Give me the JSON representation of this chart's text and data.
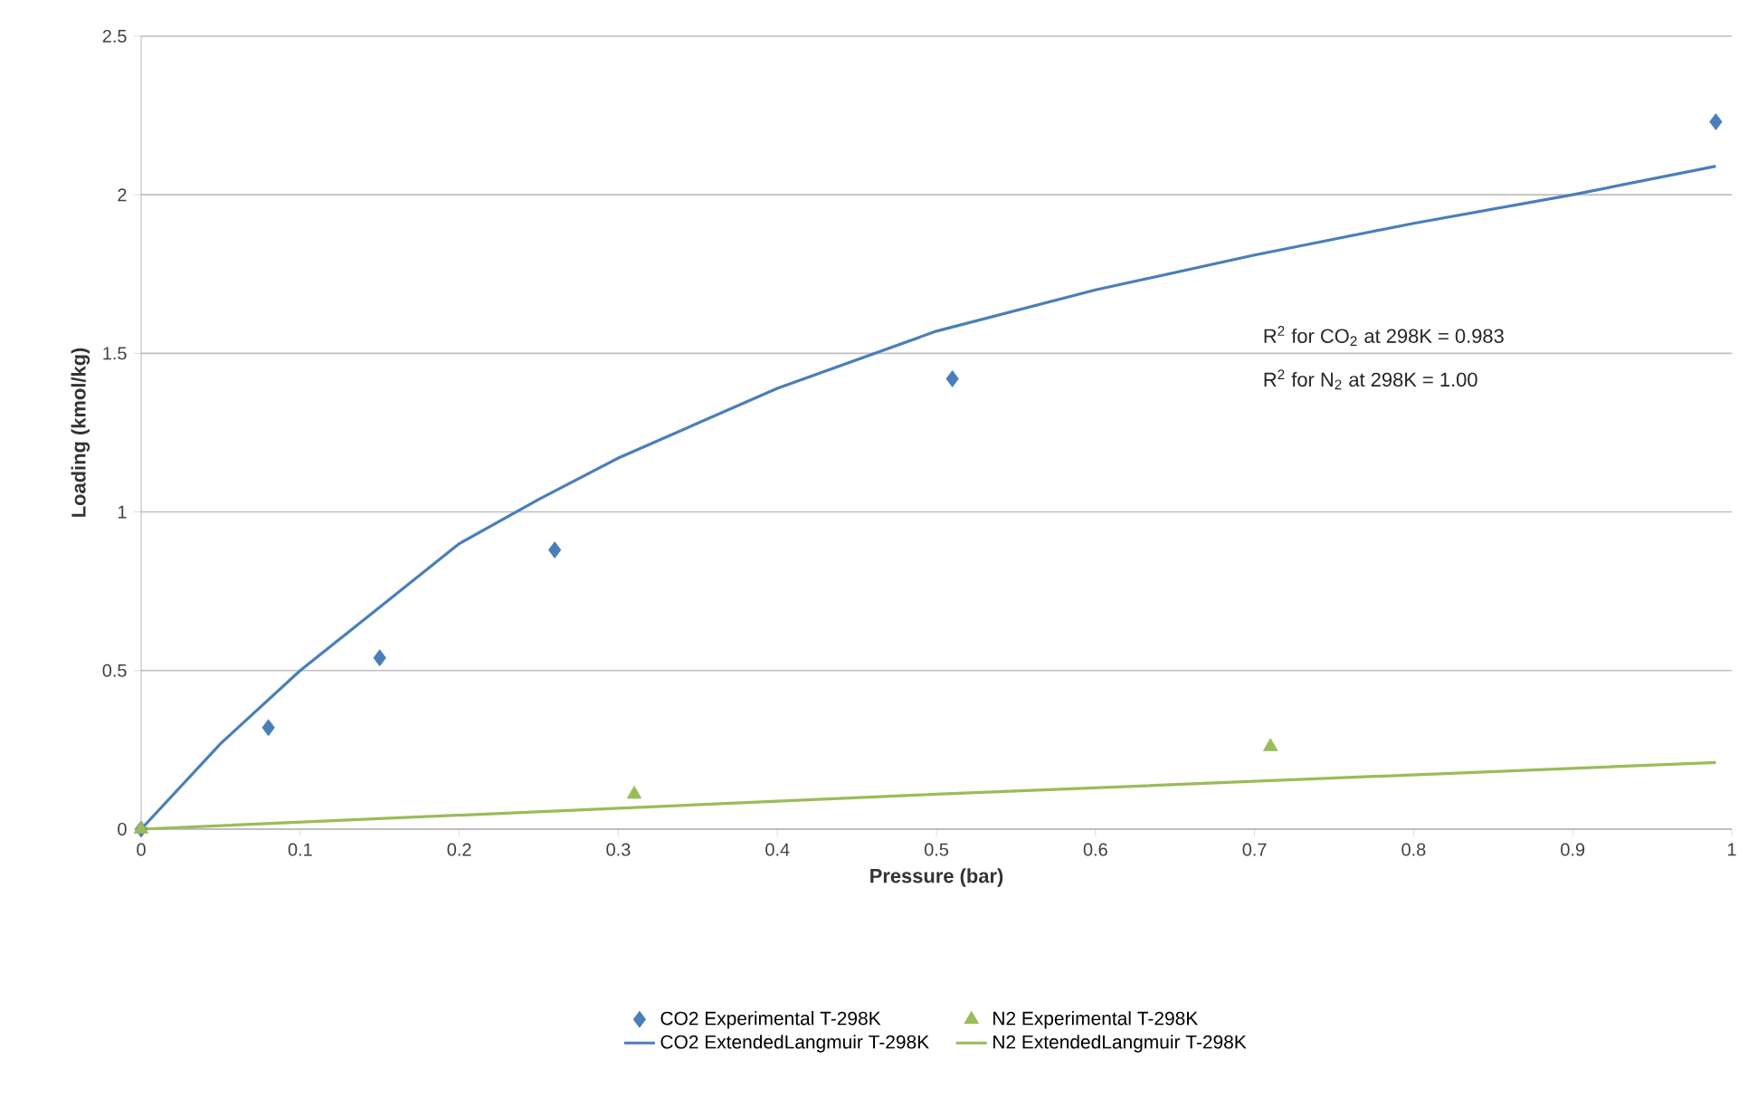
{
  "chart_data": {
    "type": "scatter",
    "xlabel": "Pressure (bar)",
    "ylabel": "Loading (kmol/kg)",
    "xlim": [
      0,
      1
    ],
    "ylim": [
      0,
      2.5
    ],
    "xticks": [
      0,
      0.1,
      0.2,
      0.3,
      0.4,
      0.5,
      0.6,
      0.7,
      0.8,
      0.9,
      1
    ],
    "yticks": [
      0,
      0.5,
      1,
      1.5,
      2,
      2.5
    ],
    "grid": "y",
    "legend": "bottom",
    "annotations": [
      "R$^{2}$ for CO$_{2}$ at 298K = 0.983",
      "R$^{2}$ for N$_{2}$ at 298K = 1.00"
    ],
    "series": [
      {
        "name": "CO2 Experimental T-298K",
        "marker": "diamond",
        "color": "#4a7ebb",
        "x": [
          0,
          0.08,
          0.15,
          0.26,
          0.51,
          0.99
        ],
        "values": [
          0,
          0.32,
          0.54,
          0.88,
          1.42,
          2.23
        ]
      },
      {
        "name": "N2 Experimental T-298K",
        "marker": "triangle",
        "color": "#9bbb59",
        "x": [
          0,
          0.31,
          0.71
        ],
        "values": [
          0,
          0.11,
          0.26
        ]
      },
      {
        "name": "CO2 ExtendedLangmuir T-298K",
        "type": "line",
        "marker": "none",
        "line_style": "solid",
        "color": "#4a7ebb",
        "x": [
          0,
          0.05,
          0.1,
          0.15,
          0.2,
          0.25,
          0.3,
          0.4,
          0.5,
          0.6,
          0.7,
          0.8,
          0.9,
          0.99
        ],
        "values": [
          0,
          0.27,
          0.5,
          0.7,
          0.9,
          1.04,
          1.17,
          1.39,
          1.57,
          1.7,
          1.81,
          1.91,
          2.0,
          2.09
        ]
      },
      {
        "name": "N2 ExtendedLangmuir T-298K",
        "type": "line",
        "marker": "none",
        "line_style": "solid",
        "color": "#9bbb59",
        "x": [
          0,
          0.5,
          0.99
        ],
        "values": [
          0,
          0.11,
          0.21
        ]
      }
    ]
  }
}
